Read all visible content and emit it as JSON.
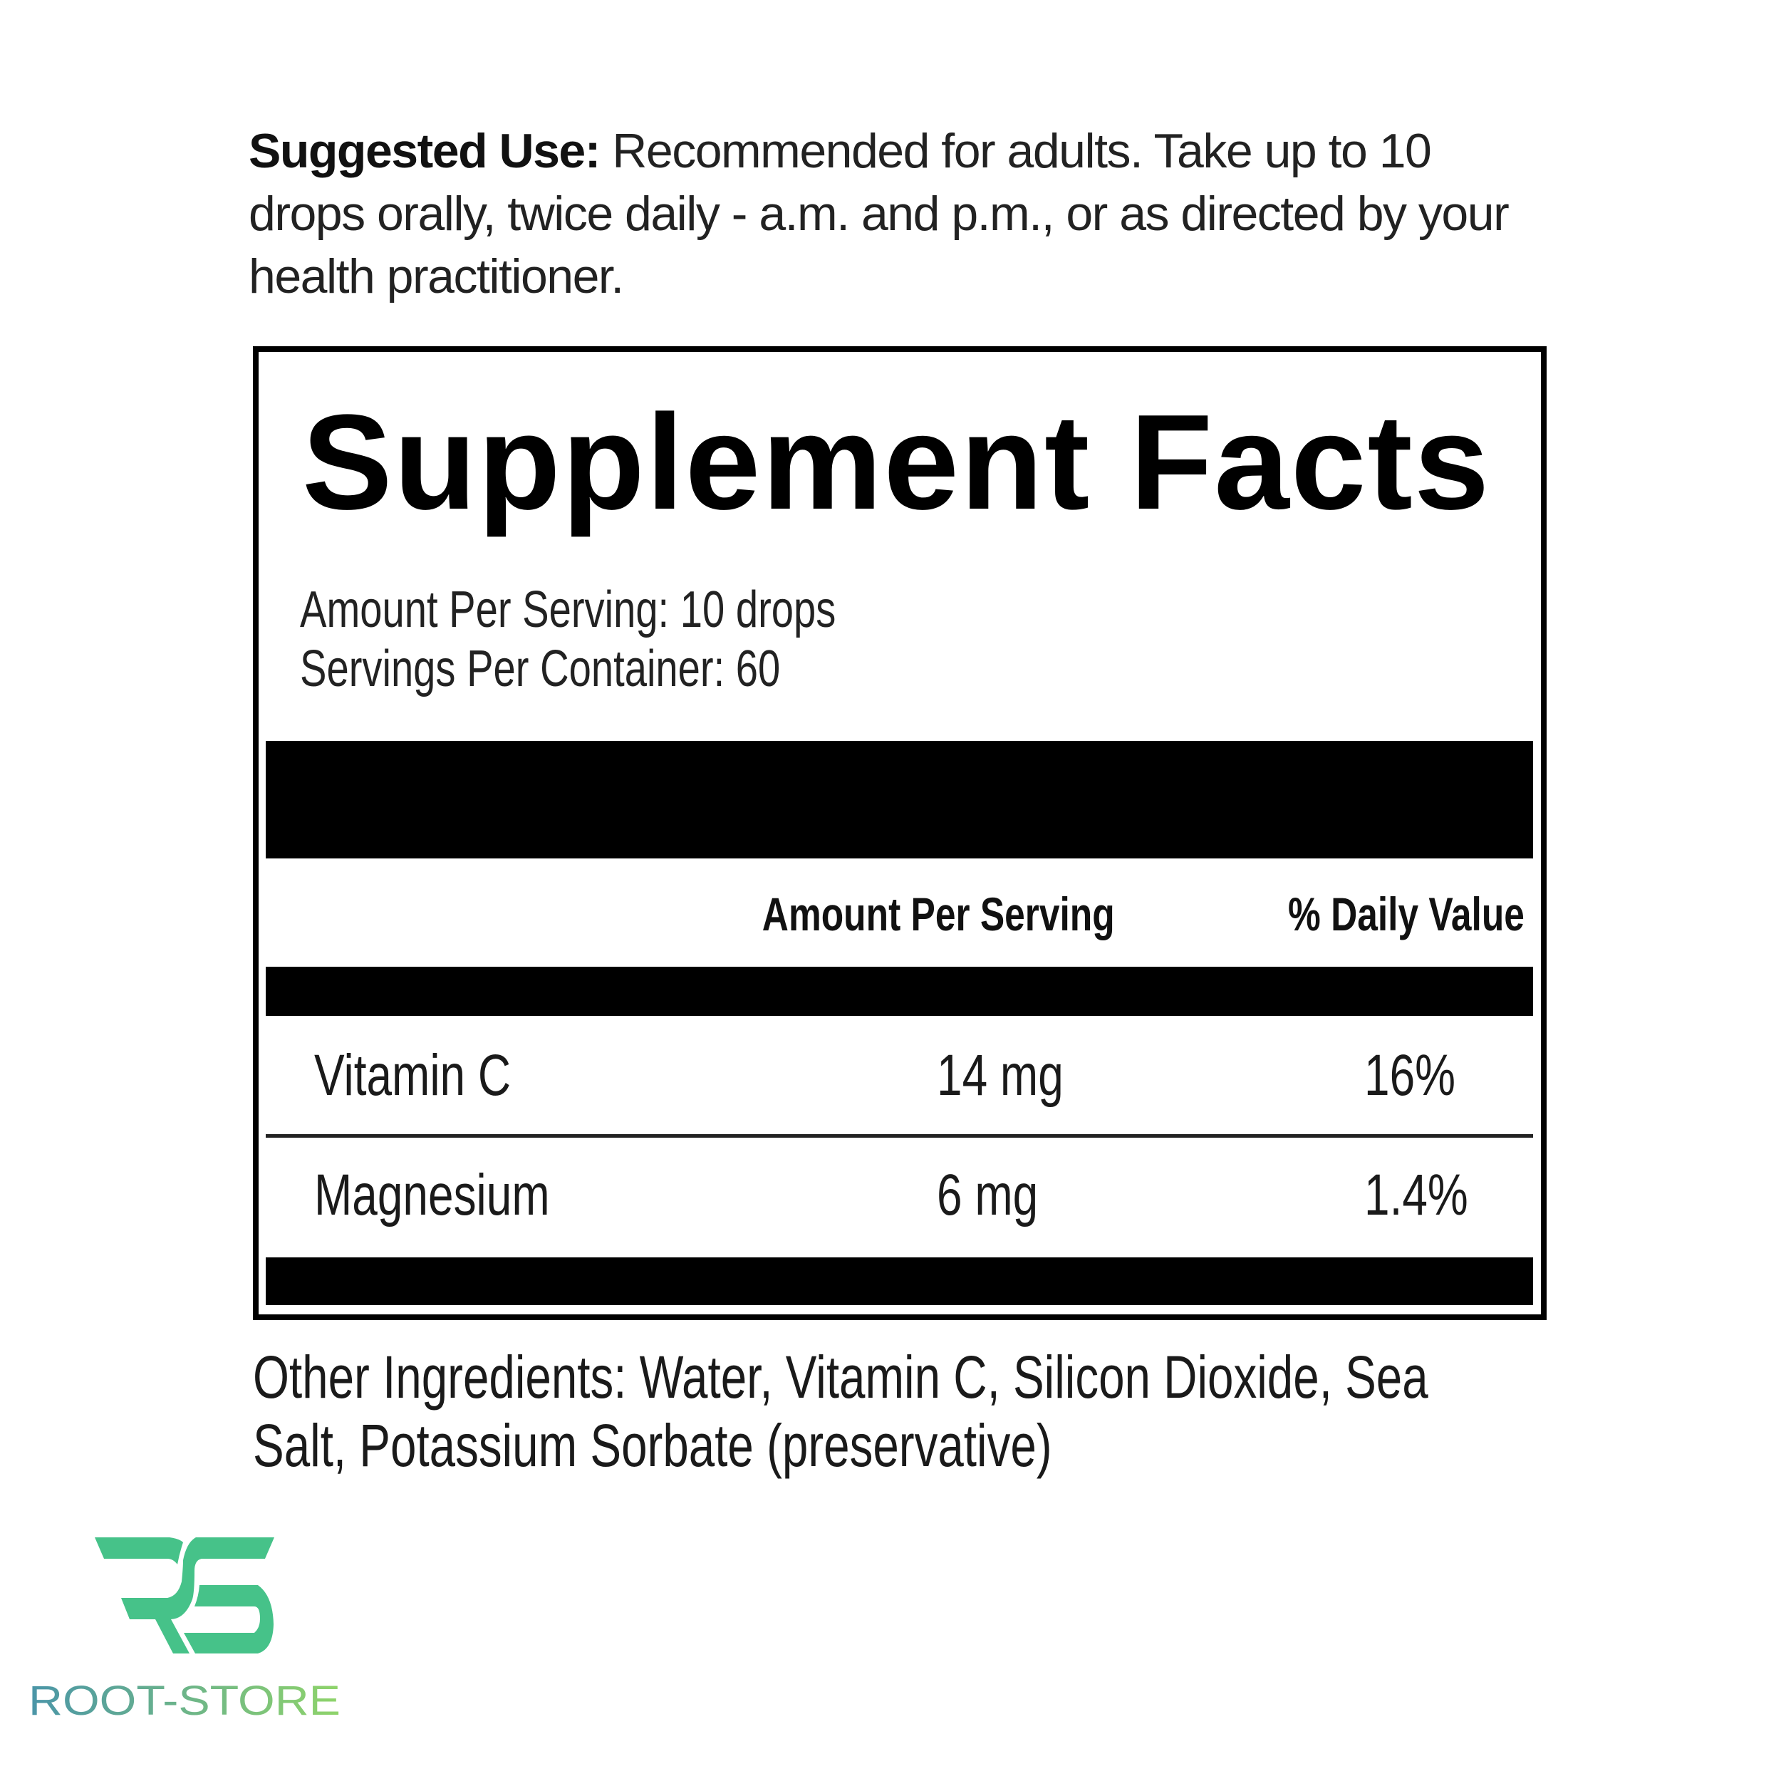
{
  "suggested_use": {
    "label": "Suggested Use:",
    "text": " Recommended for adults. Take up to 10 drops orally, twice daily - a.m. and p.m., or as directed by your health practitioner."
  },
  "facts": {
    "title": "Supplement Facts",
    "amount_per_serving": "Amount Per Serving: 10 drops",
    "servings_per_container": "Servings Per Container: 60",
    "columns": [
      "Amount Per Serving",
      "% Daily Value"
    ],
    "rows": [
      {
        "name": "Vitamin C",
        "amount": "14 mg",
        "dv": "16%"
      },
      {
        "name": "Magnesium",
        "amount": "6 mg",
        "dv": "1.4%"
      }
    ]
  },
  "other_ingredients": {
    "line1": "Other Ingredients: Water, Vitamin C, Silicon Dioxide, Sea",
    "line2": "Salt, Potassium Sorbate (preservative)"
  },
  "logo": {
    "text": "ROOT-STORE",
    "mark": "RS",
    "colors": {
      "mark": "#46C289",
      "gradient_start": "#4A95A8",
      "gradient_end": "#8FD46A"
    }
  }
}
